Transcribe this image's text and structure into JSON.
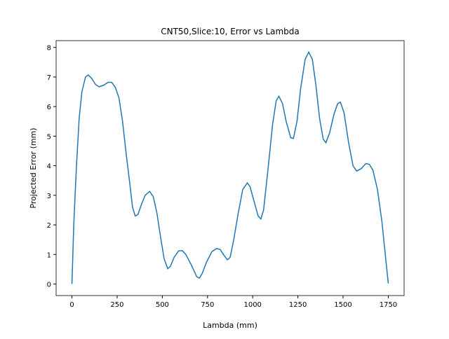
{
  "chart_data": {
    "type": "line",
    "title": "CNT50,Slice:10, Error vs Lambda",
    "x_label": "Lambda (mm)",
    "y_label": "Projected Error (mm)",
    "x": [
      0,
      10,
      25,
      40,
      55,
      75,
      90,
      110,
      130,
      150,
      175,
      200,
      220,
      240,
      260,
      280,
      300,
      320,
      335,
      350,
      365,
      385,
      405,
      430,
      450,
      470,
      490,
      510,
      530,
      545,
      565,
      590,
      610,
      630,
      660,
      690,
      705,
      720,
      745,
      775,
      800,
      820,
      840,
      860,
      875,
      895,
      920,
      945,
      970,
      985,
      1005,
      1030,
      1045,
      1060,
      1085,
      1110,
      1130,
      1145,
      1165,
      1185,
      1210,
      1225,
      1245,
      1265,
      1290,
      1310,
      1330,
      1350,
      1370,
      1390,
      1405,
      1425,
      1450,
      1470,
      1485,
      1505,
      1530,
      1555,
      1575,
      1600,
      1625,
      1645,
      1665,
      1690,
      1715,
      1735,
      1750
    ],
    "series": [
      {
        "name": "Projected Error",
        "color": "#1f77b4",
        "values": [
          0,
          2,
          4,
          5.6,
          6.5,
          7.0,
          7.07,
          6.95,
          6.75,
          6.67,
          6.72,
          6.82,
          6.82,
          6.65,
          6.3,
          5.5,
          4.4,
          3.4,
          2.6,
          2.3,
          2.35,
          2.7,
          3.0,
          3.13,
          2.95,
          2.4,
          1.6,
          0.85,
          0.52,
          0.6,
          0.9,
          1.12,
          1.13,
          1.0,
          0.65,
          0.25,
          0.2,
          0.35,
          0.75,
          1.1,
          1.2,
          1.17,
          0.98,
          0.82,
          0.9,
          1.5,
          2.4,
          3.2,
          3.42,
          3.3,
          2.85,
          2.3,
          2.2,
          2.5,
          3.9,
          5.4,
          6.2,
          6.35,
          6.1,
          5.5,
          4.95,
          4.92,
          5.5,
          6.6,
          7.6,
          7.84,
          7.6,
          6.7,
          5.6,
          4.9,
          4.78,
          5.1,
          5.75,
          6.1,
          6.15,
          5.8,
          4.8,
          4.0,
          3.82,
          3.9,
          4.07,
          4.05,
          3.85,
          3.2,
          2.1,
          0.9,
          0.02
        ]
      }
    ],
    "xlim": [
      -87.5,
      1837.5
    ],
    "ylim": [
      -0.39,
      8.23
    ],
    "xticks": [
      0,
      250,
      500,
      750,
      1000,
      1250,
      1500,
      1750
    ],
    "yticks": [
      0,
      1,
      2,
      3,
      4,
      5,
      6,
      7,
      8
    ]
  }
}
